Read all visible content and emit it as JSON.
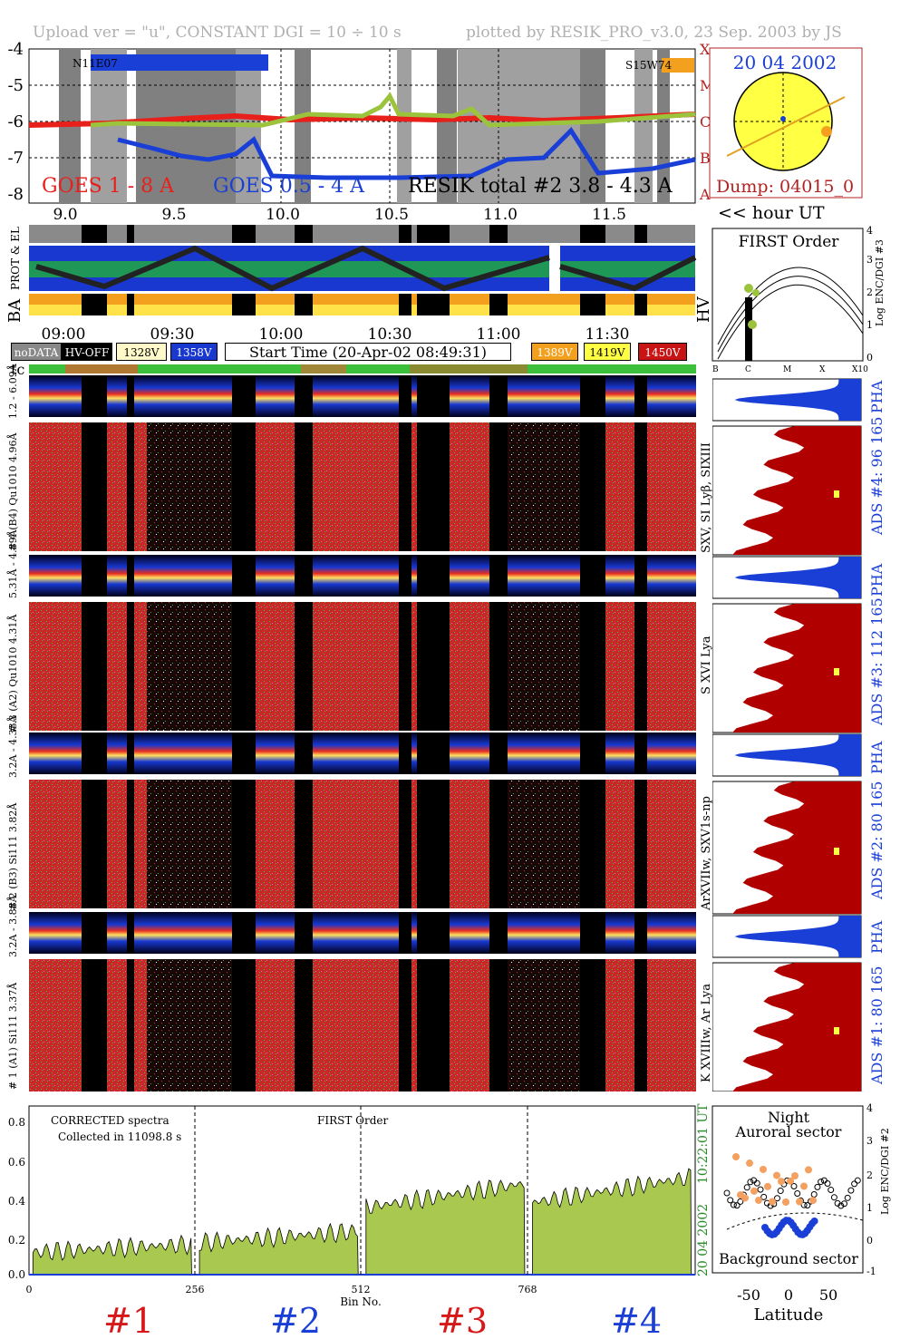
{
  "header": {
    "left": "Upload ver = \"u\", CONSTANT  DGI =  10 ÷  10 s",
    "right": "plotted by RESIK_PRO_v3.0, 23 Sep. 2003 by JS"
  },
  "goes_panel": {
    "yticks": [
      "-4",
      "-5",
      "-6",
      "-7",
      "-8"
    ],
    "class_labels": [
      "X",
      "M",
      "C",
      "B",
      "A"
    ],
    "ar_left": "N11E07",
    "ar_right": "S15W74",
    "legend_goes_long": "GOES 1 - 8 A",
    "legend_goes_short": "GOES 0.5 - 4 A",
    "legend_resik": "RESIK total #2  3.8 - 4.3 A",
    "xticks": [
      "9.0",
      "9.5",
      "10.0",
      "10.5",
      "11.0",
      "11.5"
    ],
    "x_unit": "<< hour UT",
    "colors": {
      "goes_long": "#e8201c",
      "goes_short": "#1a3fd6",
      "resik": "#9bc43c"
    }
  },
  "sun_panel": {
    "date": "20 04 2002",
    "dump": "Dump: 04015_0"
  },
  "strips": {
    "label_prot": "PROT  & EL",
    "label_ba": "BA",
    "label_hv": "HV",
    "time_ticks": [
      "09:00",
      "09:30",
      "10:00",
      "10:30",
      "11:00",
      "11:30"
    ]
  },
  "legend": {
    "nodata": "noDATA",
    "hvoff": "HV-OFF",
    "v1328": "1328V",
    "v1358": "1358V",
    "start_time": "Start Time (20-Apr-02 08:49:31)",
    "v1389": "1389V",
    "v1419": "1419V",
    "v1450": "1450V",
    "tc": "tc"
  },
  "first_order_panel": {
    "title": "FIRST Order",
    "ylabel": "Log ENC/DGI #3",
    "yticks": [
      "4",
      "3",
      "2",
      "1",
      "0"
    ],
    "xticks": [
      "B",
      "C",
      "M",
      "X",
      "X10"
    ]
  },
  "channels": [
    {
      "pha_label": "1.2 - 6.09Å",
      "spec_label": "# 4 (B4) Qu1010 4.96Å",
      "right_ion": "SXV, SI Lyβ, SIXIII",
      "ads": "ADS #4:   96 165",
      "pha": "PHA"
    },
    {
      "pha_label": "5.31Å - 4.89Å",
      "spec_label": "# 3 (A2) Qu1010 4.31Å",
      "right_ion": "S XVI Lya",
      "ads": "ADS #3:   112 165",
      "pha": "PHA"
    },
    {
      "pha_label": "3.2A - 4.33Å",
      "spec_label": "# 2 (B3) Si111 3.82Å",
      "right_ion": "ArXVIIw, SXV1s-np",
      "ads": "ADS #2:   80 165",
      "pha": "PHA"
    },
    {
      "pha_label": "3.2A - 3.88Å",
      "spec_label": "# 1 (A1) Si111 3.37Å",
      "right_ion": "K XVIIIw, Ar Lya",
      "ads": "ADS #1:   80 165",
      "pha": "PHA"
    }
  ],
  "spectrum_panel": {
    "label1": "CORRECTED spectra",
    "label2": "Collected in 11098.8 s",
    "label3": "FIRST Order",
    "yticks": [
      "0.8",
      "0.6",
      "0.4",
      "0.2",
      "0.0"
    ],
    "xticks": [
      "0",
      "256",
      "512",
      "768"
    ],
    "xlabel": "Bin No.",
    "side_time": "10:22:01 UT",
    "side_date": "20 04 2002",
    "ch_labels": [
      "#1",
      "#2",
      "#3",
      "#4"
    ],
    "ch_colors": [
      "#d81818",
      "#1a3fd6",
      "#d81818",
      "#1a3fd6"
    ]
  },
  "latitude_panel": {
    "title1": "Night",
    "title2": "Auroral sector",
    "bottom": "Background sector",
    "xlabel": "Latitude",
    "xticks": [
      "-50",
      "0",
      "50"
    ],
    "yticks": [
      "4",
      "3",
      "2",
      "1",
      "0",
      "-1"
    ],
    "ylabel": "Log ENC/DGI #2"
  },
  "chart_data": {
    "type": "line",
    "title": "",
    "xlabel": "Bin No.",
    "ylabel": "",
    "xlim": [
      0,
      1024
    ],
    "ylim": [
      0,
      0.85
    ],
    "segments": [
      {
        "name": "#1",
        "range": [
          0,
          256
        ],
        "level": 0.14
      },
      {
        "name": "#2",
        "range": [
          256,
          512
        ],
        "level": 0.2
      },
      {
        "name": "#3",
        "range": [
          512,
          768
        ],
        "level": 0.42
      },
      {
        "name": "#4",
        "range": [
          768,
          1024
        ],
        "level": 0.45
      }
    ]
  }
}
